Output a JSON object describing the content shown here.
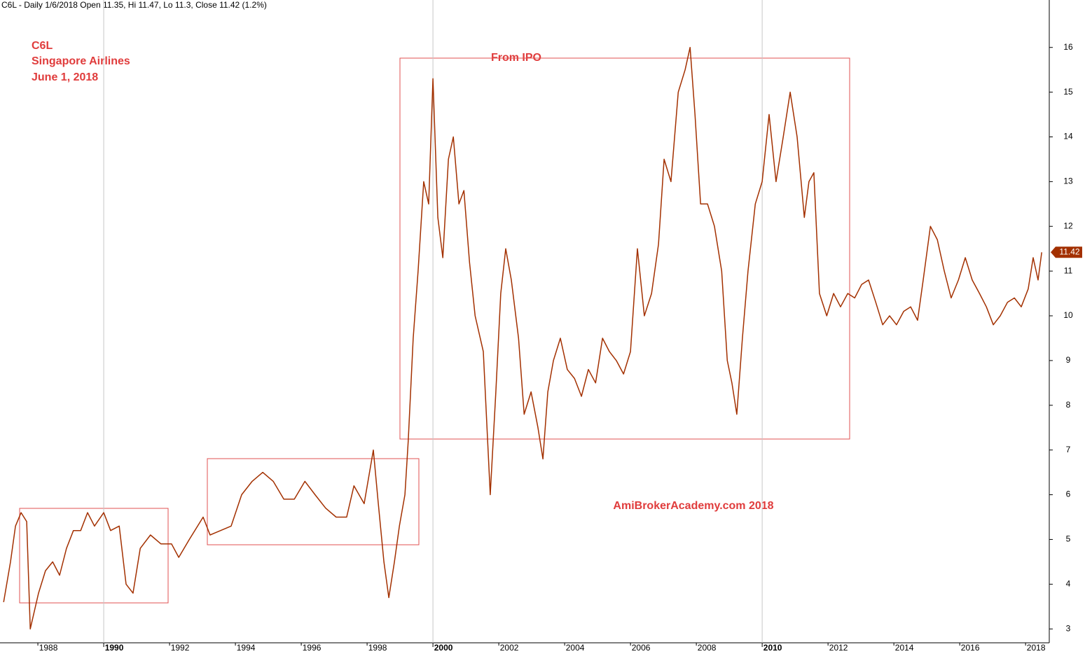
{
  "chart_data": {
    "type": "line",
    "header": "C6L - Daily 1/6/2018 Open 11.35, Hi 11.47, Lo 11.3, Close 11.42 (1.2%)",
    "annotations": [
      "C6L",
      "Singapore Airlines",
      "June 1, 2018",
      "From IPO",
      "AmiBrokerAcademy.com 2018"
    ],
    "series": [
      {
        "color": "#a33000",
        "x": [
          1986.96,
          1987.17,
          1987.32,
          1987.49,
          1987.66,
          1987.77,
          1988.02,
          1988.23,
          1988.45,
          1988.66,
          1988.87,
          1989.08,
          1989.3,
          1989.51,
          1989.72,
          1990.0,
          1990.21,
          1990.47,
          1990.68,
          1990.89,
          1991.11,
          1991.42,
          1991.74,
          1992.06,
          1992.28,
          1992.6,
          1993.02,
          1993.23,
          1993.55,
          1993.87,
          1994.19,
          1994.51,
          1994.83,
          1995.15,
          1995.47,
          1995.79,
          1996.11,
          1996.42,
          1996.74,
          1997.06,
          1997.38,
          1997.6,
          1997.91,
          1998.19,
          1998.34,
          1998.51,
          1998.66,
          1998.83,
          1998.98,
          1999.15,
          1999.25,
          1999.4,
          1999.55,
          1999.72,
          1999.87,
          2000.0,
          2000.15,
          2000.3,
          2000.47,
          2000.62,
          2000.79,
          2000.94,
          2001.11,
          2001.28,
          2001.53,
          2001.74,
          2001.91,
          2002.06,
          2002.21,
          2002.38,
          2002.6,
          2002.77,
          2002.98,
          2003.19,
          2003.34,
          2003.49,
          2003.66,
          2003.87,
          2004.08,
          2004.3,
          2004.51,
          2004.72,
          2004.94,
          2005.15,
          2005.36,
          2005.57,
          2005.79,
          2006.0,
          2006.21,
          2006.42,
          2006.64,
          2006.85,
          2007.02,
          2007.23,
          2007.45,
          2007.66,
          2007.81,
          2007.96,
          2008.13,
          2008.34,
          2008.55,
          2008.77,
          2008.94,
          2009.08,
          2009.23,
          2009.4,
          2009.57,
          2009.79,
          2010.0,
          2010.21,
          2010.42,
          2010.64,
          2010.85,
          2011.06,
          2011.28,
          2011.42,
          2011.57,
          2011.74,
          2011.96,
          2012.17,
          2012.38,
          2012.6,
          2012.81,
          2013.02,
          2013.23,
          2013.45,
          2013.66,
          2013.87,
          2014.08,
          2014.3,
          2014.51,
          2014.72,
          2014.89,
          2015.11,
          2015.32,
          2015.53,
          2015.74,
          2015.96,
          2016.17,
          2016.38,
          2016.6,
          2016.81,
          2017.02,
          2017.23,
          2017.45,
          2017.66,
          2017.87,
          2018.08,
          2018.23,
          2018.38,
          2018.49
        ],
        "values": [
          3.6,
          4.5,
          5.3,
          5.6,
          5.4,
          3.0,
          3.8,
          4.3,
          4.5,
          4.2,
          4.8,
          5.2,
          5.2,
          5.6,
          5.3,
          5.6,
          5.2,
          5.3,
          4.0,
          3.8,
          4.8,
          5.1,
          4.9,
          4.9,
          4.6,
          5.0,
          5.5,
          5.1,
          5.2,
          5.3,
          6.0,
          6.3,
          6.5,
          6.3,
          5.9,
          5.9,
          6.3,
          6.0,
          5.7,
          5.5,
          5.5,
          6.2,
          5.8,
          7.0,
          5.8,
          4.5,
          3.7,
          4.5,
          5.3,
          6.0,
          7.2,
          9.5,
          11.0,
          13.0,
          12.5,
          15.3,
          12.2,
          11.3,
          13.5,
          14.0,
          12.5,
          12.8,
          11.2,
          10.0,
          9.2,
          6.0,
          8.3,
          10.5,
          11.5,
          10.8,
          9.5,
          7.8,
          8.3,
          7.5,
          6.8,
          8.3,
          9.0,
          9.5,
          8.8,
          8.6,
          8.2,
          8.8,
          8.5,
          9.5,
          9.2,
          9.0,
          8.7,
          9.2,
          11.5,
          10.0,
          10.5,
          11.6,
          13.5,
          13.0,
          15.0,
          15.5,
          16.0,
          14.5,
          12.5,
          12.5,
          12.0,
          11.0,
          9.0,
          8.5,
          7.8,
          9.5,
          11.0,
          12.5,
          13.0,
          14.5,
          13.0,
          14.0,
          15.0,
          14.0,
          12.2,
          13.0,
          13.2,
          10.5,
          10.0,
          10.5,
          10.2,
          10.5,
          10.4,
          10.7,
          10.8,
          10.3,
          9.8,
          10.0,
          9.8,
          10.1,
          10.2,
          9.9,
          10.8,
          12.0,
          11.7,
          11.0,
          10.4,
          10.8,
          11.3,
          10.8,
          10.5,
          10.2,
          9.8,
          10.0,
          10.3,
          10.4,
          10.2,
          10.6,
          11.3,
          10.8,
          11.42
        ]
      }
    ],
    "xlim": [
      1986.85,
      2018.72
    ],
    "xticks": [
      1988,
      1990,
      1992,
      1994,
      1996,
      1998,
      2000,
      2002,
      2004,
      2006,
      2008,
      2010,
      2012,
      2014,
      2016,
      2018
    ],
    "bold_xticks": [
      1990,
      2000,
      2010
    ],
    "ylim": [
      2.69,
      17.06
    ],
    "yticks": [
      3,
      4,
      5,
      6,
      7,
      8,
      9,
      10,
      11,
      12,
      13,
      14,
      15,
      16
    ]
  }
}
